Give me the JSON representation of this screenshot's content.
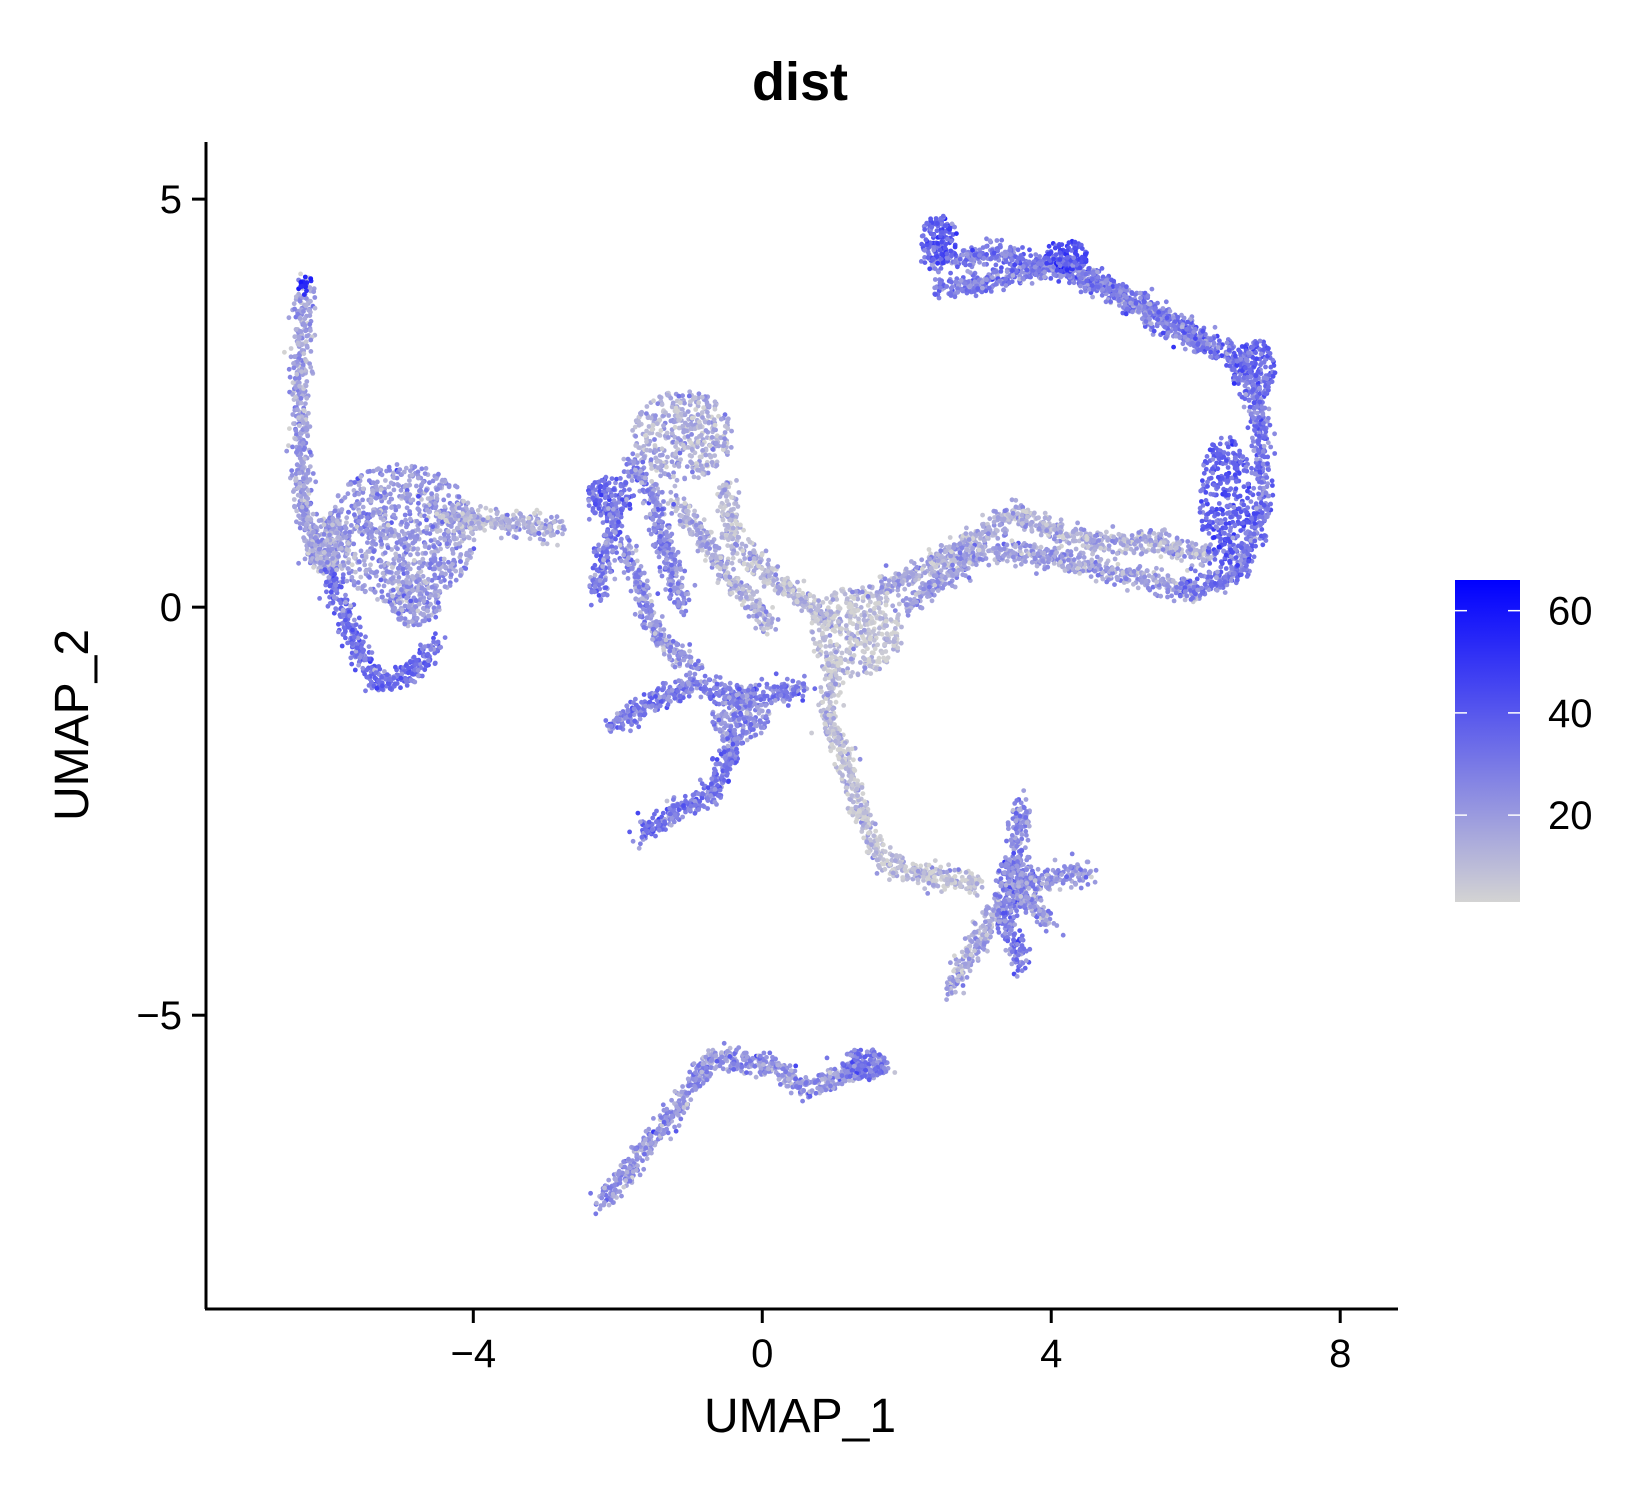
{
  "chart_data": {
    "type": "scatter",
    "title": "dist",
    "xlabel": "UMAP_1",
    "ylabel": "UMAP_2",
    "xlim": [
      -7.7,
      8.8
    ],
    "ylim": [
      -8.6,
      5.7
    ],
    "x_ticks": [
      -4,
      0,
      4,
      8
    ],
    "y_ticks": [
      -5,
      0,
      5
    ],
    "x_tick_labels": [
      "−4",
      "0",
      "4",
      "8"
    ],
    "y_tick_labels": [
      "−5",
      "0",
      "5"
    ],
    "grid": false,
    "legend_position": "right",
    "color_scale": {
      "low_color": "#d3d3d3",
      "high_color": "#0000ff",
      "min": 3,
      "max": 66,
      "ticks": [
        20,
        40,
        60
      ],
      "tick_labels": [
        "20",
        "40",
        "60"
      ]
    },
    "clusters": [
      {
        "path": [
          [
            -6.35,
            3.95
          ],
          [
            -6.4,
            2.5
          ],
          [
            -6.35,
            1.2
          ],
          [
            -6.2,
            0.6
          ],
          [
            -5.9,
            0.5
          ]
        ],
        "mean": 18,
        "tip_value": 60
      },
      {
        "path": [
          [
            -6.0,
            0.4
          ],
          [
            -5.6,
            -0.5
          ],
          [
            -5.3,
            -0.95
          ],
          [
            -4.9,
            -0.85
          ],
          [
            -4.5,
            -0.45
          ]
        ],
        "mean": 32
      },
      {
        "blob": [
          -5.0,
          0.9
        ],
        "r": [
          1.05,
          0.85
        ],
        "mean": 20
      },
      {
        "blob": [
          -6.0,
          0.8
        ],
        "r": [
          0.3,
          0.3
        ],
        "mean": 18
      },
      {
        "blob": [
          -4.8,
          0.05
        ],
        "r": [
          0.35,
          0.3
        ],
        "mean": 20
      },
      {
        "path": [
          [
            -4.6,
            1.1
          ],
          [
            -3.8,
            1.05
          ],
          [
            -3.2,
            1.0
          ],
          [
            -2.8,
            0.95
          ]
        ],
        "mean": 14
      },
      {
        "blob": [
          -1.1,
          2.1
        ],
        "r": [
          0.7,
          0.55
        ],
        "mean": 14
      },
      {
        "blob": [
          -2.1,
          1.35
        ],
        "r": [
          0.35,
          0.25
        ],
        "mean": 32
      },
      {
        "path": [
          [
            -2.0,
            1.2
          ],
          [
            -2.2,
            0.6
          ],
          [
            -2.3,
            0.1
          ]
        ],
        "mean": 28
      },
      {
        "path": [
          [
            -1.8,
            1.8
          ],
          [
            -1.5,
            1.3
          ],
          [
            -1.3,
            0.6
          ],
          [
            -1.1,
            0.0
          ]
        ],
        "mean": 24
      },
      {
        "path": [
          [
            -1.2,
            1.3
          ],
          [
            -0.8,
            0.8
          ],
          [
            -0.4,
            0.3
          ],
          [
            0.1,
            -0.2
          ]
        ],
        "mean": 14
      },
      {
        "path": [
          [
            -0.5,
            1.5
          ],
          [
            -0.4,
            0.8
          ],
          [
            0.2,
            0.3
          ],
          [
            1.0,
            -0.2
          ]
        ],
        "mean": 10
      },
      {
        "blob": [
          1.3,
          -0.3
        ],
        "r": [
          0.65,
          0.55
        ],
        "mean": 8
      },
      {
        "path": [
          [
            1.0,
            -0.6
          ],
          [
            0.9,
            -1.3
          ],
          [
            1.3,
            -2.3
          ],
          [
            1.6,
            -3.1
          ],
          [
            2.4,
            -3.3
          ],
          [
            3.0,
            -3.4
          ]
        ],
        "mean": 8
      },
      {
        "path": [
          [
            -2.1,
            -1.5
          ],
          [
            -1.6,
            -1.2
          ],
          [
            -1.0,
            -0.95
          ],
          [
            -0.2,
            -1.1
          ],
          [
            0.6,
            -1.0
          ]
        ],
        "mean": 28
      },
      {
        "blob": [
          -0.3,
          -1.35
        ],
        "r": [
          0.4,
          0.3
        ],
        "mean": 22
      },
      {
        "path": [
          [
            -1.7,
            -2.8
          ],
          [
            -1.2,
            -2.5
          ],
          [
            -0.7,
            -2.3
          ],
          [
            -0.5,
            -1.9
          ],
          [
            -0.3,
            -1.4
          ]
        ],
        "mean": 30
      },
      {
        "path": [
          [
            -1.9,
            0.8
          ],
          [
            -1.5,
            -0.3
          ],
          [
            -0.9,
            -0.8
          ]
        ],
        "mean": 22
      },
      {
        "blob": [
          3.5,
          -3.4
        ],
        "r": [
          0.3,
          0.35
        ],
        "mean": 30
      },
      {
        "path": [
          [
            3.5,
            -3.3
          ],
          [
            3.6,
            -2.4
          ]
        ],
        "mean": 24
      },
      {
        "path": [
          [
            3.5,
            -3.4
          ],
          [
            4.5,
            -3.25
          ]
        ],
        "mean": 22
      },
      {
        "path": [
          [
            3.3,
            -3.6
          ],
          [
            2.6,
            -4.7
          ]
        ],
        "mean": 16
      },
      {
        "path": [
          [
            3.3,
            -3.6
          ],
          [
            3.6,
            -4.4
          ]
        ],
        "mean": 28
      },
      {
        "path": [
          [
            3.5,
            -3.4
          ],
          [
            4.0,
            -3.9
          ]
        ],
        "mean": 22
      },
      {
        "path": [
          [
            1.6,
            0.2
          ],
          [
            2.5,
            0.6
          ],
          [
            3.5,
            1.15
          ],
          [
            4.5,
            0.8
          ],
          [
            5.5,
            0.8
          ],
          [
            6.2,
            0.6
          ]
        ],
        "mean": 14
      },
      {
        "path": [
          [
            2.0,
            0.0
          ],
          [
            3.0,
            0.7
          ],
          [
            4.0,
            0.6
          ],
          [
            5.0,
            0.4
          ],
          [
            6.0,
            0.2
          ]
        ],
        "mean": 18
      },
      {
        "path": [
          [
            5.8,
            0.2
          ],
          [
            6.6,
            0.4
          ],
          [
            6.9,
            1.2
          ],
          [
            6.9,
            2.2
          ],
          [
            6.8,
            2.8
          ],
          [
            6.4,
            3.2
          ]
        ],
        "mean": 30
      },
      {
        "blob": [
          6.4,
          1.3
        ],
        "r": [
          0.35,
          0.8
        ],
        "mean": 36
      },
      {
        "blob": [
          6.8,
          2.9
        ],
        "r": [
          0.3,
          0.4
        ],
        "mean": 34
      },
      {
        "path": [
          [
            6.3,
            3.2
          ],
          [
            5.3,
            3.7
          ],
          [
            4.3,
            4.1
          ],
          [
            3.2,
            4.35
          ],
          [
            2.3,
            4.2
          ]
        ],
        "mean": 30
      },
      {
        "path": [
          [
            6.3,
            3.1
          ],
          [
            5.3,
            3.6
          ],
          [
            4.2,
            4.2
          ],
          [
            3.2,
            4.0
          ],
          [
            2.4,
            3.9
          ]
        ],
        "mean": 28
      },
      {
        "blob": [
          2.45,
          4.5
        ],
        "r": [
          0.25,
          0.3
        ],
        "mean": 38
      },
      {
        "blob": [
          4.2,
          4.3
        ],
        "r": [
          0.3,
          0.2
        ],
        "mean": 42
      },
      {
        "path": [
          [
            -2.2,
            -7.3
          ],
          [
            -1.5,
            -6.5
          ],
          [
            -0.7,
            -5.5
          ],
          [
            0.1,
            -5.6
          ],
          [
            0.6,
            -5.9
          ],
          [
            1.2,
            -5.7
          ],
          [
            1.7,
            -5.6
          ]
        ],
        "mean": 22
      },
      {
        "blob": [
          1.4,
          -5.6
        ],
        "r": [
          0.3,
          0.2
        ],
        "mean": 30
      }
    ]
  }
}
